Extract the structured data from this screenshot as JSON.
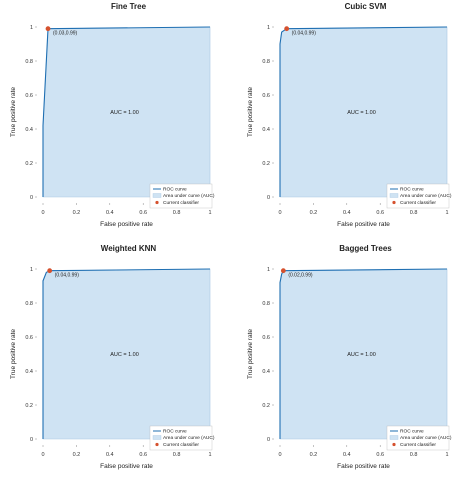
{
  "colors": {
    "area": "#cfe3f3",
    "area_edge": "#a9c9e4",
    "curve": "#1f6fb2",
    "point": "#d5512e",
    "axis": "#888888"
  },
  "chart_data": [
    {
      "type": "line",
      "title": "Fine Tree",
      "xlabel": "False positive rate",
      "ylabel": "True positive rate",
      "xlim": [
        0,
        1
      ],
      "ylim": [
        0,
        1
      ],
      "xticks": [
        "0",
        "0.2",
        "0.4",
        "0.6",
        "0.8",
        "1"
      ],
      "yticks": [
        "0",
        "0.2",
        "0.4",
        "0.6",
        "0.8",
        "1"
      ],
      "curve": {
        "x": [
          0,
          0,
          0.03,
          1
        ],
        "y": [
          0,
          0.42,
          0.99,
          1
        ]
      },
      "auc_label": "AUC = 1.00",
      "point": {
        "x": 0.03,
        "y": 0.99,
        "label": "(0.03,0.99)"
      },
      "legend": [
        "ROC curve",
        "Area under curve (AUC)",
        "Current classifier"
      ],
      "legend_position": "bottom-right"
    },
    {
      "type": "line",
      "title": "Cubic SVM",
      "xlabel": "False positive rate",
      "ylabel": "True positive rate",
      "xlim": [
        0,
        1
      ],
      "ylim": [
        0,
        1
      ],
      "xticks": [
        "0",
        "0.2",
        "0.4",
        "0.6",
        "0.8",
        "1"
      ],
      "yticks": [
        "0",
        "0.2",
        "0.4",
        "0.6",
        "0.8",
        "1"
      ],
      "curve": {
        "x": [
          0,
          0,
          0.01,
          0.04,
          1
        ],
        "y": [
          0,
          0.9,
          0.97,
          0.99,
          1
        ]
      },
      "auc_label": "AUC = 1.00",
      "point": {
        "x": 0.04,
        "y": 0.99,
        "label": "(0.04,0.99)"
      },
      "legend": [
        "ROC curve",
        "Area under curve (AUC)",
        "Current classifier"
      ],
      "legend_position": "bottom-right"
    },
    {
      "type": "line",
      "title": "Weighted KNN",
      "xlabel": "False positive rate",
      "ylabel": "True positive rate",
      "xlim": [
        0,
        1
      ],
      "ylim": [
        0,
        1
      ],
      "xticks": [
        "0",
        "0.2",
        "0.4",
        "0.6",
        "0.8",
        "1"
      ],
      "yticks": [
        "0",
        "0.2",
        "0.4",
        "0.6",
        "0.8",
        "1"
      ],
      "curve": {
        "x": [
          0,
          0,
          0.02,
          0.04,
          1
        ],
        "y": [
          0,
          0.93,
          0.98,
          0.99,
          1
        ]
      },
      "auc_label": "AUC = 1.00",
      "point": {
        "x": 0.04,
        "y": 0.99,
        "label": "(0.04,0.99)"
      },
      "legend": [
        "ROC curve",
        "Area under curve (AUC)",
        "Current classifier"
      ],
      "legend_position": "bottom-right"
    },
    {
      "type": "line",
      "title": "Bagged Trees",
      "xlabel": "False positive rate",
      "ylabel": "True positive rate",
      "xlim": [
        0,
        1
      ],
      "ylim": [
        0,
        1
      ],
      "xticks": [
        "0",
        "0.2",
        "0.4",
        "0.6",
        "0.8",
        "1"
      ],
      "yticks": [
        "0",
        "0.2",
        "0.4",
        "0.6",
        "0.8",
        "1"
      ],
      "curve": {
        "x": [
          0,
          0,
          0.01,
          0.02,
          1
        ],
        "y": [
          0,
          0.92,
          0.97,
          0.99,
          1
        ]
      },
      "auc_label": "AUC = 1.00",
      "point": {
        "x": 0.02,
        "y": 0.99,
        "label": "(0.02,0.99)"
      },
      "legend": [
        "ROC curve",
        "Area under curve (AUC)",
        "Current classifier"
      ],
      "legend_position": "bottom-right"
    }
  ]
}
